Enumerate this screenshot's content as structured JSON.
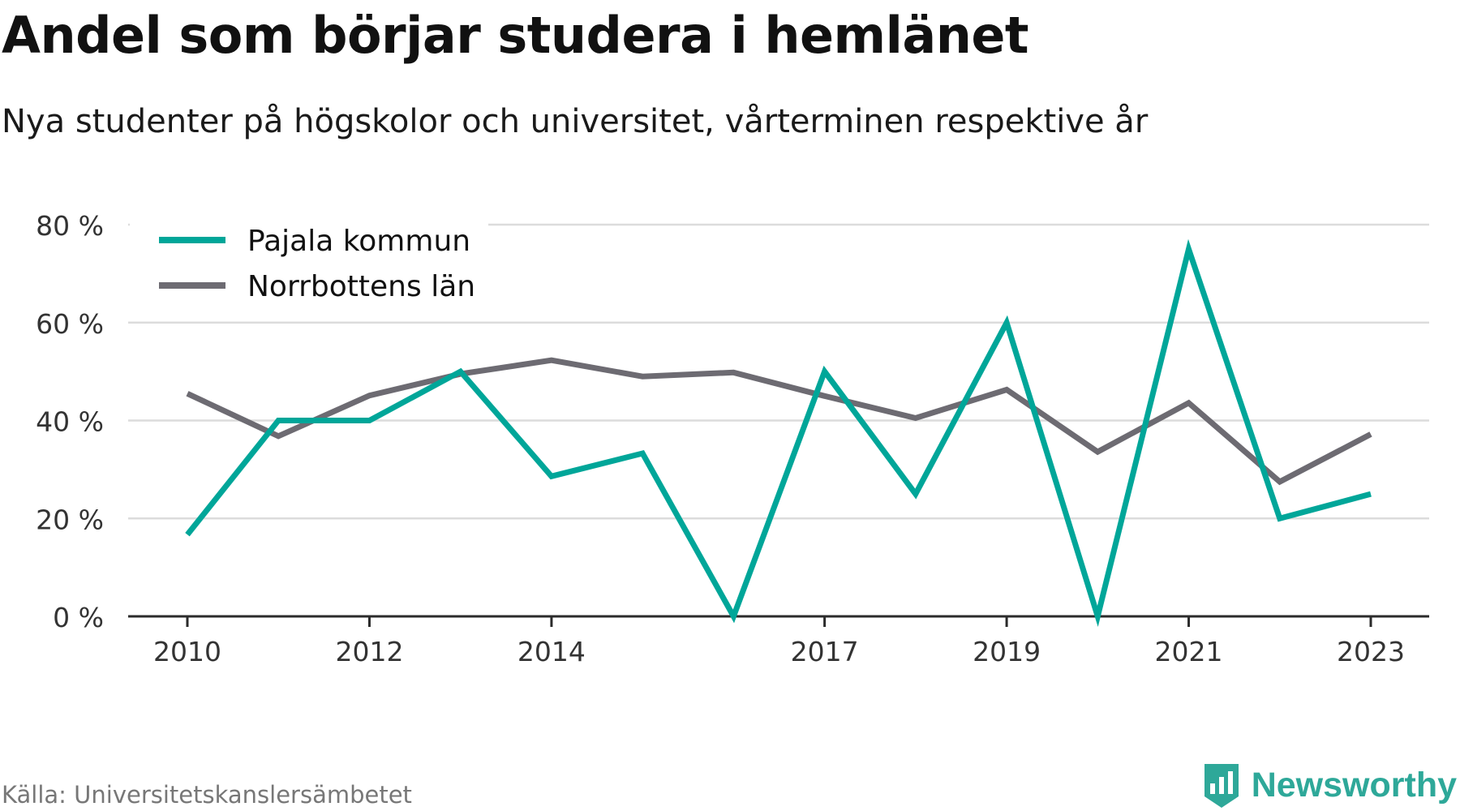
{
  "header": {
    "title": "Andel som börjar studera i hemlänet",
    "subtitle": "Nya studenter på högskolor och universitet, vårterminen respektive år"
  },
  "footer": {
    "source": "Källa: Universitetskanslersämbetet",
    "brand": "Newsworthy",
    "brand_icon": "bar-chart-shield-icon",
    "brand_color": "#2ea899"
  },
  "chart_data": {
    "type": "line",
    "title": "Andel som börjar studera i hemlänet",
    "subtitle": "Nya studenter på högskolor och universitet, vårterminen respektive år",
    "xlabel": "",
    "ylabel": "",
    "x": [
      2010,
      2011,
      2012,
      2013,
      2014,
      2015,
      2016,
      2017,
      2018,
      2019,
      2020,
      2021,
      2022,
      2023
    ],
    "x_ticks": [
      2010,
      2012,
      2014,
      2017,
      2019,
      2021,
      2023
    ],
    "x_tick_labels": [
      "2010",
      "2012",
      "2014",
      "2017",
      "2019",
      "2021",
      "2023"
    ],
    "y_ticks": [
      0,
      20,
      40,
      60,
      80
    ],
    "y_tick_labels": [
      "0 %",
      "20 %",
      "40 %",
      "60 %",
      "80 %"
    ],
    "ylim": [
      0,
      80
    ],
    "grid": true,
    "legend_position": "top-left",
    "series": [
      {
        "name": "Pajala kommun",
        "color": "#00a699",
        "values": [
          16.7,
          40,
          40,
          50,
          28.6,
          33.3,
          0,
          50,
          25,
          60,
          0,
          75,
          20,
          25
        ]
      },
      {
        "name": "Norrbottens län",
        "color": "#6d6b72",
        "values": [
          45.5,
          36.8,
          45.1,
          49.5,
          52.3,
          49.0,
          49.8,
          45.0,
          40.5,
          46.3,
          33.6,
          43.6,
          27.5,
          37.2
        ]
      }
    ]
  }
}
